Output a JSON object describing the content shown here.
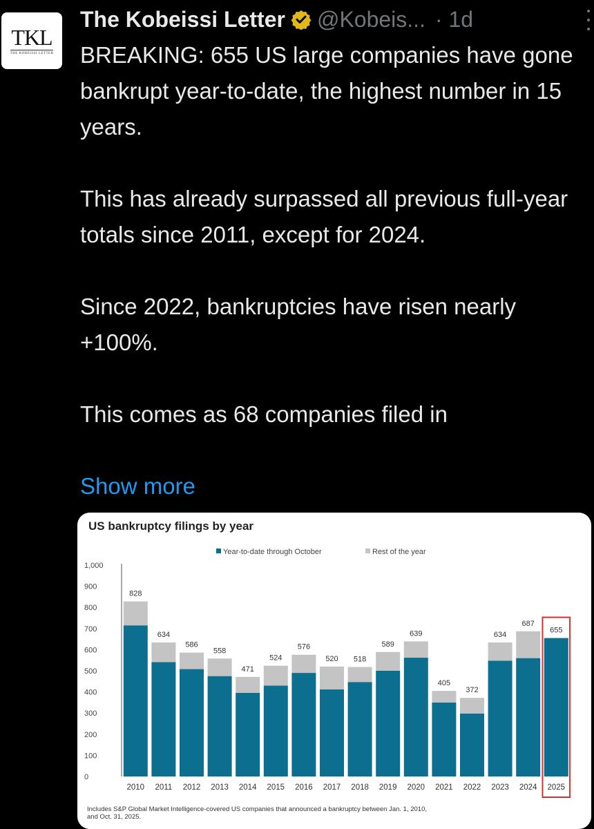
{
  "author": {
    "name": "The Kobeissi Letter",
    "handle": "@Kobeis...",
    "time": "· 1d",
    "avatar_text": "TKL",
    "avatar_subtext": "THE KOBEISSI LETTER",
    "verified_color": "#e2b719"
  },
  "tweet": {
    "paragraphs": [
      "BREAKING: 655 US large companies have gone bankrupt year-to-date, the highest number in 15 years.",
      "This has already surpassed all previous full-year totals since 2011, except for 2024.",
      "Since 2022, bankruptcies have risen nearly +100%.",
      "This comes as 68 companies filed in"
    ],
    "show_more": "Show more"
  },
  "chart_data": {
    "type": "bar",
    "stacked": true,
    "title": "US bankruptcy filings by year",
    "categories": [
      "2010",
      "2011",
      "2012",
      "2013",
      "2014",
      "2015",
      "2016",
      "2017",
      "2018",
      "2019",
      "2020",
      "2021",
      "2022",
      "2023",
      "2024",
      "2025"
    ],
    "totals": [
      828,
      634,
      586,
      558,
      471,
      524,
      576,
      520,
      518,
      589,
      639,
      405,
      372,
      634,
      687,
      655
    ],
    "series": [
      {
        "name": "Year-to-date through October",
        "color": "#0d6f8f",
        "values": [
          715,
          541,
          508,
          475,
          396,
          430,
          490,
          412,
          447,
          500,
          562,
          350,
          298,
          548,
          560,
          655
        ]
      },
      {
        "name": "Rest of the year",
        "color": "#c4c4c4",
        "values": [
          113,
          93,
          78,
          83,
          75,
          94,
          86,
          108,
          71,
          89,
          77,
          55,
          74,
          86,
          127,
          0
        ]
      }
    ],
    "yticks": [
      "0",
      "100",
      "200",
      "300",
      "400",
      "500",
      "600",
      "700",
      "800",
      "900",
      "1,000"
    ],
    "ylim": [
      0,
      1000
    ],
    "grid": false,
    "legend": "top-center",
    "highlight_category": "2025",
    "highlight_color": "#d32f2f",
    "footnote": "Includes S&P Global Market Intelligence-covered US companies that announced a bankruptcy between Jan. 1, 2010, and Oct. 31, 2025."
  }
}
